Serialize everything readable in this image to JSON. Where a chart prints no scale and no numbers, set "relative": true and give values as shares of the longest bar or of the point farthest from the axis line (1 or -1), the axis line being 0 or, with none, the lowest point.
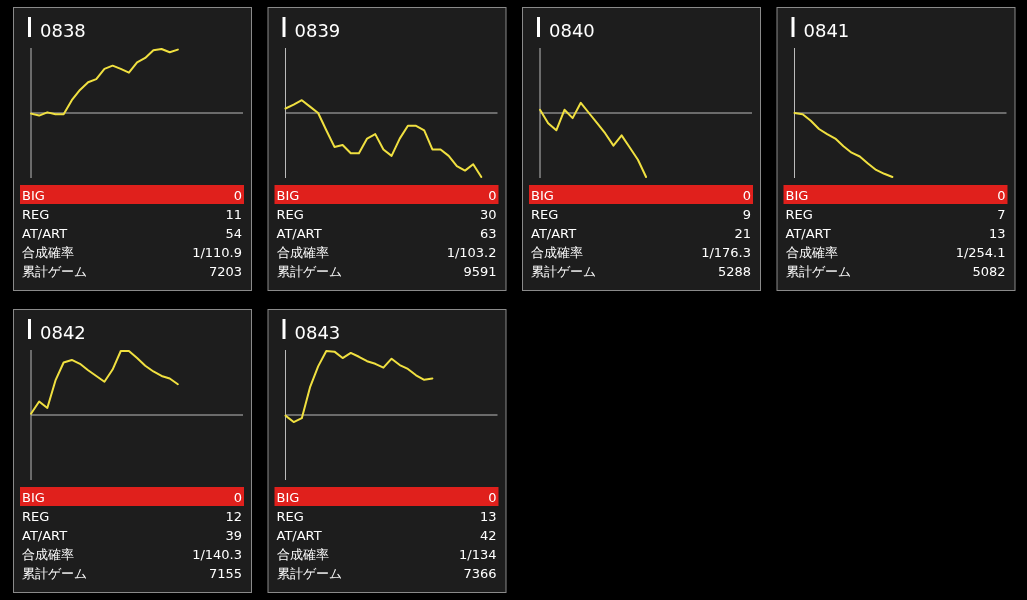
{
  "chart_data": [
    {
      "type": "line",
      "title": "0838",
      "relative": true,
      "color": "#f0e040",
      "categories": [
        null,
        null,
        null,
        null,
        null,
        null,
        null,
        null,
        null,
        null,
        null,
        null,
        null,
        null,
        null,
        null,
        null,
        null,
        null,
        null,
        null,
        null,
        null,
        null,
        null,
        null
      ],
      "values": [
        -0.01,
        -0.04,
        0.01,
        -0.02,
        -0.02,
        0.2,
        0.36,
        0.48,
        0.53,
        0.69,
        0.74,
        0.69,
        0.63,
        0.79,
        0.86,
        0.98,
        1,
        0.95,
        0.99,
        null,
        null,
        null,
        null,
        null,
        null,
        null
      ],
      "annotations": [
        "BIG",
        "0",
        "REG",
        "11",
        "AT/ART",
        "54",
        "合成確率",
        "1/110.9",
        "累計ゲーム",
        "7203"
      ]
    },
    {
      "type": "line",
      "title": "0839",
      "relative": true,
      "color": "#f0e040",
      "categories": [
        null,
        null,
        null,
        null,
        null,
        null,
        null,
        null,
        null,
        null,
        null,
        null,
        null,
        null,
        null,
        null,
        null,
        null,
        null,
        null,
        null,
        null,
        null,
        null,
        null,
        null
      ],
      "values": [
        0.07,
        0.13,
        0.2,
        0.1,
        0,
        -0.27,
        -0.53,
        -0.5,
        -0.63,
        -0.63,
        -0.4,
        -0.33,
        -0.57,
        -0.67,
        -0.4,
        -0.2,
        -0.2,
        -0.27,
        -0.57,
        -0.57,
        -0.67,
        -0.83,
        -0.9,
        -0.8,
        -1,
        null
      ],
      "annotations": [
        "BIG",
        "0",
        "REG",
        "30",
        "AT/ART",
        "63",
        "合成確率",
        "1/103.2",
        "累計ゲーム",
        "9591"
      ]
    },
    {
      "type": "line",
      "title": "0840",
      "relative": true,
      "color": "#f0e040",
      "categories": [
        null,
        null,
        null,
        null,
        null,
        null,
        null,
        null,
        null,
        null,
        null,
        null,
        null,
        null,
        null,
        null,
        null,
        null,
        null,
        null,
        null,
        null,
        null,
        null,
        null,
        null
      ],
      "values": [
        0.05,
        -0.16,
        -0.27,
        0.05,
        -0.08,
        0.16,
        0,
        -0.16,
        -0.32,
        -0.51,
        -0.35,
        -0.54,
        -0.73,
        -1,
        null,
        null,
        null,
        null,
        null,
        null,
        null,
        null,
        null,
        null,
        null,
        null
      ],
      "annotations": [
        "BIG",
        "0",
        "REG",
        "9",
        "AT/ART",
        "21",
        "合成確率",
        "1/176.3",
        "累計ゲーム",
        "5288"
      ]
    },
    {
      "type": "line",
      "title": "0841",
      "relative": true,
      "color": "#f0e040",
      "categories": [
        null,
        null,
        null,
        null,
        null,
        null,
        null,
        null,
        null,
        null,
        null,
        null,
        null,
        null,
        null,
        null,
        null,
        null,
        null,
        null,
        null,
        null,
        null,
        null,
        null,
        null
      ],
      "values": [
        0,
        -0.02,
        -0.12,
        -0.25,
        -0.33,
        -0.4,
        -0.52,
        -0.62,
        -0.68,
        -0.79,
        -0.89,
        -0.95,
        -1,
        null,
        null,
        null,
        null,
        null,
        null,
        null,
        null,
        null,
        null,
        null,
        null,
        null
      ],
      "annotations": [
        "BIG",
        "0",
        "REG",
        "7",
        "AT/ART",
        "13",
        "合成確率",
        "1/254.1",
        "累計ゲーム",
        "5082"
      ]
    },
    {
      "type": "line",
      "title": "0842",
      "relative": true,
      "color": "#f0e040",
      "categories": [
        null,
        null,
        null,
        null,
        null,
        null,
        null,
        null,
        null,
        null,
        null,
        null,
        null,
        null,
        null,
        null,
        null,
        null,
        null,
        null,
        null,
        null,
        null,
        null,
        null,
        null
      ],
      "values": [
        0.02,
        0.21,
        0.11,
        0.54,
        0.82,
        0.86,
        0.8,
        0.7,
        0.61,
        0.52,
        0.71,
        1,
        1,
        0.89,
        0.77,
        0.68,
        0.61,
        0.57,
        0.48,
        null,
        null,
        null,
        null,
        null,
        null,
        null
      ],
      "annotations": [
        "BIG",
        "0",
        "REG",
        "12",
        "AT/ART",
        "39",
        "合成確率",
        "1/140.3",
        "累計ゲーム",
        "7155"
      ]
    },
    {
      "type": "line",
      "title": "0843",
      "relative": true,
      "color": "#f0e040",
      "categories": [
        null,
        null,
        null,
        null,
        null,
        null,
        null,
        null,
        null,
        null,
        null,
        null,
        null,
        null,
        null,
        null,
        null,
        null,
        null,
        null,
        null,
        null,
        null,
        null,
        null,
        null
      ],
      "values": [
        -0.01,
        -0.11,
        -0.05,
        0.43,
        0.76,
        1,
        0.99,
        0.89,
        0.97,
        0.91,
        0.84,
        0.8,
        0.74,
        0.88,
        0.78,
        0.72,
        0.62,
        0.55,
        0.57,
        null,
        null,
        null,
        null,
        null,
        null,
        null
      ],
      "annotations": [
        "BIG",
        "0",
        "REG",
        "13",
        "AT/ART",
        "42",
        "合成確率",
        "1/134",
        "累計ゲーム",
        "7366"
      ]
    }
  ]
}
